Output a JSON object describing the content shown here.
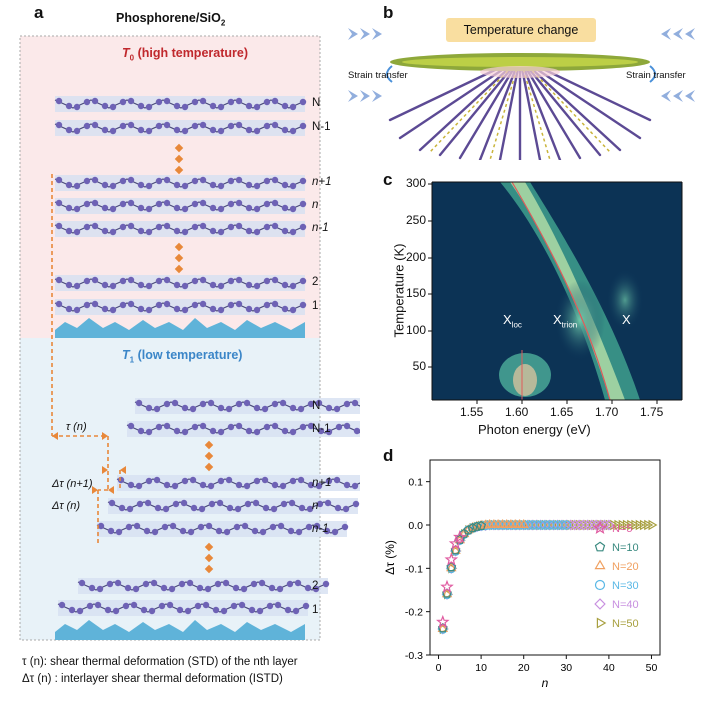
{
  "panel_a": {
    "letter": "a",
    "title": "Phosphorene/SiO",
    "title_sub": "2",
    "high_temp_symbol": "T",
    "high_temp_sub": "0",
    "high_temp_text": " (high temperature)",
    "low_temp_symbol": "T",
    "low_temp_sub": "1",
    "low_temp_text": " (low temperature)",
    "layers_top": [
      "N",
      "N-1",
      "n+1",
      "n",
      "n-1",
      "2",
      "1"
    ],
    "layers_bottom": [
      "N",
      "N-1",
      "n+1",
      "n",
      "n-1",
      "2",
      "1"
    ],
    "tau_label": "τ (n)",
    "dtau_n1_label": "Δτ (n+1)",
    "dtau_n_label": "Δτ (n)",
    "legend_1": "τ (n): shear thermal deformation (STD) of the nth layer",
    "legend_2": "Δτ (n) : interlayer shear thermal deformation (ISTD)",
    "colors": {
      "high_bg": "#fbe9ea",
      "low_bg": "#e8f2f8",
      "atom": "#6e62b5",
      "accent": "#e8883a",
      "substrate": "#5fb3d9"
    }
  },
  "panel_b": {
    "letter": "b",
    "banner": "Temperature change",
    "strain_left": "Strain transfer",
    "strain_right": "Strain transfer"
  },
  "panel_c": {
    "letter": "c",
    "ylabel": "Temperature (K)",
    "xlabel": "Photon energy (eV)",
    "yticks": [
      "50",
      "100",
      "150",
      "200",
      "250",
      "300"
    ],
    "xticks": [
      "1.55",
      "1.60",
      "1.65",
      "1.70",
      "1.75"
    ],
    "labels": [
      {
        "main": "X",
        "sub": "loc"
      },
      {
        "main": "X",
        "sub": "trion"
      },
      {
        "main": "X",
        "sub": ""
      }
    ]
  },
  "panel_d": {
    "letter": "d"
  },
  "chart_data": {
    "type": "scatter",
    "xlabel": "n",
    "ylabel": "Δτ (%)",
    "xlim": [
      -2,
      52
    ],
    "ylim": [
      -0.3,
      0.15
    ],
    "xticks": [
      0,
      10,
      20,
      30,
      40,
      50
    ],
    "yticks": [
      -0.3,
      -0.2,
      -0.1,
      0.0,
      0.1
    ],
    "legend_position": "right",
    "series": [
      {
        "name": "N=5",
        "marker": "star",
        "color": "#e05aa0",
        "x": [
          1,
          2,
          3,
          4,
          5
        ],
        "y": [
          -0.224,
          -0.143,
          -0.08,
          -0.043,
          -0.028
        ]
      },
      {
        "name": "N=10",
        "marker": "pentagon",
        "color": "#3a8a80",
        "x": [
          1,
          2,
          3,
          4,
          5,
          6,
          7,
          8,
          9,
          10
        ],
        "y": [
          -0.238,
          -0.158,
          -0.097,
          -0.058,
          -0.034,
          -0.02,
          -0.012,
          -0.007,
          -0.004,
          -0.002
        ]
      },
      {
        "name": "N=20",
        "marker": "triangle",
        "color": "#f0a060",
        "x": [
          1,
          2,
          3,
          4,
          5,
          6,
          7,
          8,
          9,
          10,
          11,
          12,
          13,
          14,
          15,
          16,
          17,
          18,
          19,
          20
        ],
        "y": [
          -0.24,
          -0.16,
          -0.1,
          -0.06,
          -0.035,
          -0.021,
          -0.012,
          -0.007,
          -0.004,
          -0.002,
          -0.001,
          0,
          0,
          0,
          0,
          0,
          0,
          0,
          0,
          0
        ]
      },
      {
        "name": "N=30",
        "marker": "circle",
        "color": "#5ab8e6",
        "x": [
          1,
          2,
          3,
          4,
          5,
          6,
          7,
          8,
          9,
          10,
          11,
          12,
          13,
          14,
          15,
          16,
          17,
          18,
          19,
          20,
          21,
          22,
          23,
          24,
          25,
          26,
          27,
          28,
          29,
          30
        ],
        "y": [
          -0.24,
          -0.16,
          -0.1,
          -0.06,
          -0.035,
          -0.021,
          -0.012,
          -0.007,
          -0.004,
          -0.002,
          -0.001,
          0,
          0,
          0,
          0,
          0,
          0,
          0,
          0,
          0,
          0,
          0,
          0,
          0,
          0,
          0,
          0,
          0,
          0,
          0
        ]
      },
      {
        "name": "N=40",
        "marker": "diamond",
        "color": "#c890e0",
        "x": [
          1,
          2,
          3,
          4,
          5,
          6,
          7,
          8,
          9,
          10,
          11,
          12,
          13,
          14,
          15,
          16,
          17,
          18,
          19,
          20,
          21,
          22,
          23,
          24,
          25,
          26,
          27,
          28,
          29,
          30,
          31,
          32,
          33,
          34,
          35,
          36,
          37,
          38,
          39,
          40
        ],
        "y": [
          -0.24,
          -0.16,
          -0.1,
          -0.06,
          -0.035,
          -0.021,
          -0.012,
          -0.007,
          -0.004,
          -0.002,
          -0.001,
          0,
          0,
          0,
          0,
          0,
          0,
          0,
          0,
          0,
          0,
          0,
          0,
          0,
          0,
          0,
          0,
          0,
          0,
          0,
          0,
          0,
          0,
          0,
          0,
          0,
          0,
          0,
          0,
          0
        ]
      },
      {
        "name": "N=50",
        "marker": "triangle-right",
        "color": "#a8a040",
        "x": [
          1,
          2,
          3,
          4,
          5,
          6,
          7,
          8,
          9,
          10,
          11,
          12,
          13,
          14,
          15,
          16,
          17,
          18,
          19,
          20,
          21,
          22,
          23,
          24,
          25,
          26,
          27,
          28,
          29,
          30,
          31,
          32,
          33,
          34,
          35,
          36,
          37,
          38,
          39,
          40,
          41,
          42,
          43,
          44,
          45,
          46,
          47,
          48,
          49,
          50
        ],
        "y": [
          -0.24,
          -0.16,
          -0.1,
          -0.06,
          -0.035,
          -0.021,
          -0.012,
          -0.007,
          -0.004,
          -0.002,
          -0.001,
          0,
          0,
          0,
          0,
          0,
          0,
          0,
          0,
          0,
          0,
          0,
          0,
          0,
          0,
          0,
          0,
          0,
          0,
          0,
          0,
          0,
          0,
          0,
          0,
          0,
          0,
          0,
          0,
          0,
          0,
          0,
          0,
          0,
          0,
          0,
          0,
          0,
          0,
          0
        ]
      }
    ]
  }
}
